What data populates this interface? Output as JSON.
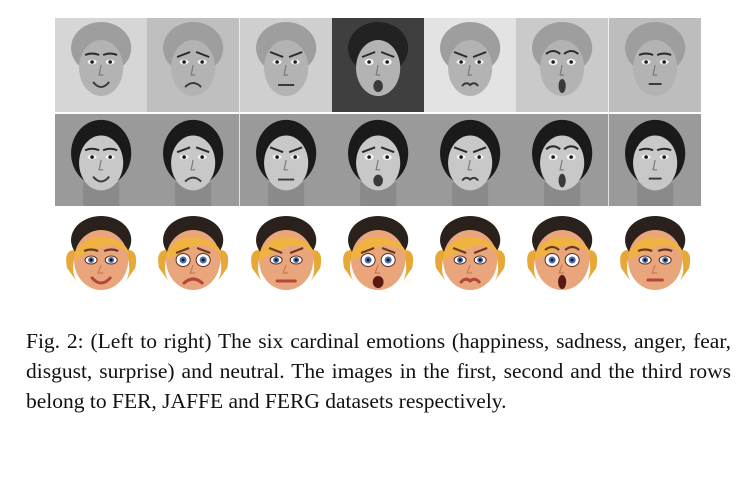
{
  "figure": {
    "caption": "Fig. 2: (Left to right) The six cardinal emotions (happiness, sadness, anger, fear, disgust, surprise) and neutral. The images in the first, second and the third rows belong to FER, JAFFE and FERG datasets respectively.",
    "rows": [
      {
        "id": "fer",
        "face_style": "grayscale-photo",
        "faces": [
          "happiness",
          "sadness",
          "anger",
          "fear",
          "disgust",
          "surprise",
          "neutral"
        ]
      },
      {
        "id": "jaffe",
        "face_style": "grayscale-photo",
        "faces": [
          "happiness",
          "sadness",
          "anger",
          "fear",
          "disgust",
          "surprise",
          "neutral"
        ]
      },
      {
        "id": "ferg",
        "face_style": "color-cartoon",
        "faces": [
          "happiness",
          "sadness",
          "anger",
          "fear",
          "disgust",
          "surprise",
          "neutral"
        ]
      }
    ]
  }
}
